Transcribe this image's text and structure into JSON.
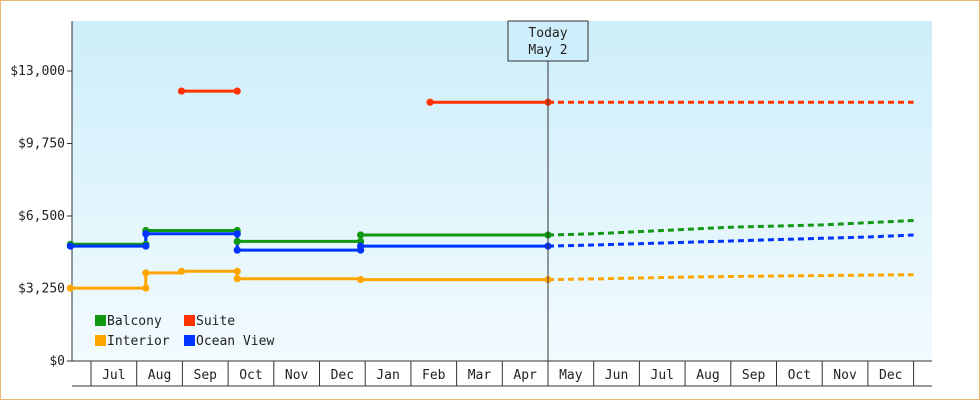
{
  "chart_data": {
    "type": "line",
    "title": "",
    "xlabel": "",
    "ylabel": "",
    "ylim": [
      0,
      13000
    ],
    "y_ticks": [
      "$0",
      "$3,250",
      "$6,500",
      "$9,750",
      "$13,000"
    ],
    "y_tick_values": [
      0,
      3250,
      6500,
      9750,
      13000
    ],
    "months": [
      "Jul",
      "Aug",
      "Sep",
      "Oct",
      "Nov",
      "Dec",
      "Jan",
      "Feb",
      "Mar",
      "Apr",
      "May",
      "Jun",
      "Jul",
      "Aug",
      "Sep",
      "Oct",
      "Nov",
      "Dec"
    ],
    "today": {
      "line1": "Today",
      "line2": "May 2",
      "month_position": 10.0
    },
    "grid": false,
    "legend_position": "bottom-left",
    "legend": [
      {
        "label": "Balcony",
        "color": "#119911"
      },
      {
        "label": "Suite",
        "color": "#ff3300"
      },
      {
        "label": "Interior",
        "color": "#ffa500"
      },
      {
        "label": "Ocean View",
        "color": "#0033ff"
      }
    ],
    "series": [
      {
        "name": "Balcony",
        "color": "#119911",
        "history": [
          [
            -0.45,
            5230
          ],
          [
            1.2,
            5230
          ],
          [
            1.2,
            5850
          ],
          [
            3.2,
            5850
          ],
          [
            3.2,
            5360
          ],
          [
            5.9,
            5360
          ],
          [
            5.9,
            5650
          ],
          [
            10.0,
            5650
          ]
        ],
        "forecast": [
          [
            10.0,
            5650
          ],
          [
            11.0,
            5700
          ],
          [
            12.0,
            5800
          ],
          [
            13.0,
            5900
          ],
          [
            14.0,
            6000
          ],
          [
            15.0,
            6050
          ],
          [
            16.0,
            6100
          ],
          [
            17.0,
            6200
          ],
          [
            18.0,
            6300
          ]
        ]
      },
      {
        "name": "Suite",
        "color": "#ff3300",
        "history_segments": [
          [
            [
              1.98,
              12100
            ],
            [
              3.2,
              12100
            ]
          ],
          [
            [
              7.42,
              11600
            ],
            [
              10.0,
              11600
            ]
          ]
        ],
        "forecast": [
          [
            10.0,
            11600
          ],
          [
            18.0,
            11600
          ]
        ]
      },
      {
        "name": "Interior",
        "color": "#ffa500",
        "history": [
          [
            -0.45,
            3270
          ],
          [
            1.2,
            3270
          ],
          [
            1.2,
            3950
          ],
          [
            1.98,
            3950
          ],
          [
            1.98,
            4020
          ],
          [
            3.2,
            4020
          ],
          [
            3.2,
            3690
          ],
          [
            5.9,
            3690
          ],
          [
            5.9,
            3650
          ],
          [
            10.0,
            3650
          ]
        ],
        "forecast": [
          [
            10.0,
            3650
          ],
          [
            11.0,
            3680
          ],
          [
            12.0,
            3720
          ],
          [
            13.0,
            3760
          ],
          [
            14.0,
            3790
          ],
          [
            15.0,
            3810
          ],
          [
            16.0,
            3830
          ],
          [
            17.0,
            3850
          ],
          [
            18.0,
            3870
          ]
        ]
      },
      {
        "name": "Ocean View",
        "color": "#0033ff",
        "history": [
          [
            -0.45,
            5150
          ],
          [
            1.2,
            5150
          ],
          [
            1.2,
            5700
          ],
          [
            3.2,
            5700
          ],
          [
            3.2,
            4970
          ],
          [
            5.9,
            4970
          ],
          [
            5.9,
            5150
          ],
          [
            10.0,
            5150
          ]
        ],
        "forecast": [
          [
            10.0,
            5150
          ],
          [
            11.0,
            5200
          ],
          [
            12.0,
            5260
          ],
          [
            13.0,
            5320
          ],
          [
            14.0,
            5380
          ],
          [
            15.0,
            5440
          ],
          [
            16.0,
            5500
          ],
          [
            17.0,
            5560
          ],
          [
            18.0,
            5650
          ]
        ]
      }
    ],
    "markers": {
      "Balcony": [
        [
          -0.45,
          5230
        ],
        [
          1.2,
          5230
        ],
        [
          1.2,
          5850
        ],
        [
          3.2,
          5850
        ],
        [
          3.2,
          5360
        ],
        [
          5.9,
          5360
        ],
        [
          5.9,
          5650
        ],
        [
          10.0,
          5650
        ]
      ],
      "Suite": [
        [
          1.98,
          12100
        ],
        [
          3.2,
          12100
        ],
        [
          7.42,
          11600
        ],
        [
          10.0,
          11600
        ]
      ],
      "Interior": [
        [
          -0.45,
          3270
        ],
        [
          1.2,
          3270
        ],
        [
          1.2,
          3950
        ],
        [
          1.98,
          4020
        ],
        [
          3.2,
          4020
        ],
        [
          3.2,
          3690
        ],
        [
          5.9,
          3650
        ],
        [
          10.0,
          3650
        ]
      ],
      "Ocean View": [
        [
          -0.45,
          5150
        ],
        [
          1.2,
          5150
        ],
        [
          1.2,
          5700
        ],
        [
          3.2,
          5700
        ],
        [
          3.2,
          4970
        ],
        [
          5.9,
          4970
        ],
        [
          5.9,
          5150
        ],
        [
          10.0,
          5150
        ]
      ]
    }
  }
}
